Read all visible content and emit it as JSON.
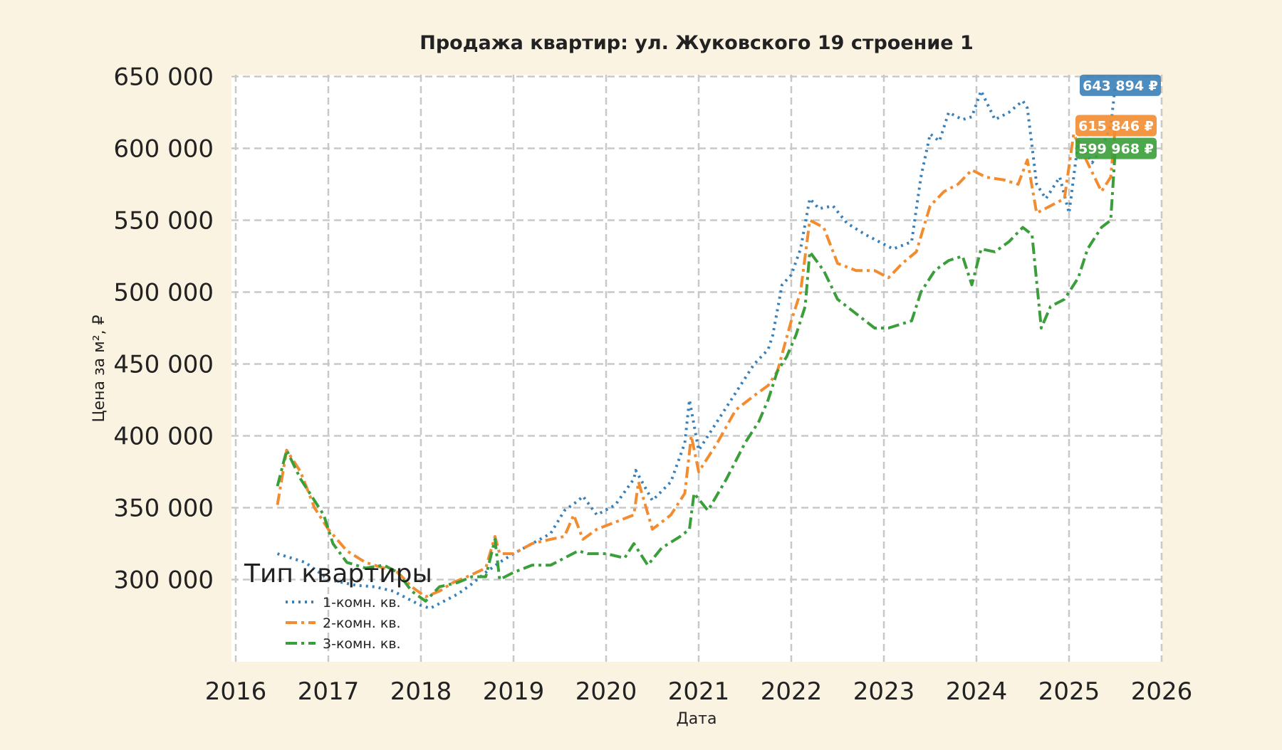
{
  "chart_data": {
    "type": "line",
    "title": "Продажа квартир: ул. Жуковского 19 строение 1",
    "xlabel": "Дата",
    "ylabel": "Цена за м², ₽",
    "xlim": [
      2016,
      2026
    ],
    "ylim": [
      262000,
      660000
    ],
    "x_ticks": [
      2016,
      2017,
      2018,
      2019,
      2020,
      2021,
      2022,
      2023,
      2024,
      2025,
      2026
    ],
    "x_tick_labels": [
      "2016",
      "2017",
      "2018",
      "2019",
      "2020",
      "2021",
      "2022",
      "2023",
      "2024",
      "2025",
      "2026"
    ],
    "y_ticks": [
      300000,
      350000,
      400000,
      450000,
      500000,
      550000,
      600000,
      650000
    ],
    "y_tick_labels": [
      "300 000",
      "350 000",
      "400 000",
      "450 000",
      "500 000",
      "550 000",
      "600 000",
      "650 000"
    ],
    "grid": true,
    "legend": {
      "title": "Тип квартиры",
      "placement": "lower-left"
    },
    "series": [
      {
        "name": "1-комн. кв.",
        "color": "#3a80b8",
        "style": "dotted",
        "x": [
          2016.45,
          2016.6,
          2016.75,
          2016.9,
          2017.0,
          2017.15,
          2017.3,
          2017.5,
          2017.7,
          2017.85,
          2018.0,
          2018.1,
          2018.25,
          2018.4,
          2018.55,
          2018.7,
          2018.85,
          2019.0,
          2019.2,
          2019.4,
          2019.55,
          2019.7,
          2019.75,
          2019.9,
          2020.1,
          2020.3,
          2020.32,
          2020.5,
          2020.7,
          2020.85,
          2020.9,
          2021.0,
          2021.2,
          2021.4,
          2021.6,
          2021.75,
          2021.8,
          2021.9,
          2022.0,
          2022.1,
          2022.2,
          2022.3,
          2022.45,
          2022.6,
          2022.8,
          2022.95,
          2023.1,
          2023.3,
          2023.4,
          2023.5,
          2023.6,
          2023.7,
          2023.85,
          2023.95,
          2024.05,
          2024.2,
          2024.35,
          2024.5,
          2024.55,
          2024.65,
          2024.75,
          2024.9,
          2025.0,
          2025.1,
          2025.25,
          2025.35,
          2025.45,
          2025.5
        ],
        "y": [
          318000,
          315000,
          312000,
          305000,
          300000,
          298000,
          296000,
          295000,
          292000,
          287000,
          282000,
          280000,
          285000,
          290000,
          297000,
          305000,
          312000,
          318000,
          325000,
          332000,
          348000,
          355000,
          358000,
          345000,
          352000,
          370000,
          376000,
          355000,
          368000,
          395000,
          425000,
          390000,
          410000,
          430000,
          450000,
          460000,
          470000,
          505000,
          512000,
          530000,
          565000,
          558000,
          560000,
          548000,
          540000,
          535000,
          530000,
          535000,
          580000,
          610000,
          605000,
          625000,
          620000,
          622000,
          640000,
          620000,
          625000,
          633000,
          628000,
          575000,
          565000,
          580000,
          555000,
          605000,
          590000,
          600000,
          615000,
          643894
        ]
      },
      {
        "name": "2-комн. кв.",
        "color": "#f28c30",
        "style": "dash-dot",
        "x": [
          2016.45,
          2016.55,
          2016.7,
          2016.85,
          2017.0,
          2017.2,
          2017.4,
          2017.6,
          2017.75,
          2017.9,
          2018.05,
          2018.2,
          2018.35,
          2018.5,
          2018.7,
          2018.8,
          2018.85,
          2019.0,
          2019.2,
          2019.4,
          2019.55,
          2019.65,
          2019.75,
          2019.9,
          2020.1,
          2020.3,
          2020.35,
          2020.5,
          2020.7,
          2020.85,
          2020.92,
          2021.0,
          2021.2,
          2021.4,
          2021.6,
          2021.75,
          2021.85,
          2022.0,
          2022.1,
          2022.2,
          2022.35,
          2022.5,
          2022.7,
          2022.9,
          2023.05,
          2023.2,
          2023.35,
          2023.5,
          2023.65,
          2023.8,
          2023.95,
          2024.1,
          2024.3,
          2024.45,
          2024.55,
          2024.65,
          2024.8,
          2024.95,
          2025.05,
          2025.2,
          2025.35,
          2025.45,
          2025.5
        ],
        "y": [
          352000,
          390000,
          375000,
          350000,
          335000,
          320000,
          312000,
          308000,
          305000,
          295000,
          288000,
          292000,
          298000,
          302000,
          308000,
          330000,
          318000,
          318000,
          325000,
          328000,
          330000,
          345000,
          328000,
          335000,
          340000,
          345000,
          368000,
          335000,
          345000,
          360000,
          400000,
          375000,
          395000,
          418000,
          428000,
          435000,
          445000,
          480000,
          500000,
          550000,
          545000,
          520000,
          515000,
          515000,
          510000,
          520000,
          528000,
          560000,
          570000,
          575000,
          585000,
          580000,
          578000,
          575000,
          592000,
          555000,
          560000,
          565000,
          610000,
          590000,
          570000,
          580000,
          615846
        ]
      },
      {
        "name": "3-комн. кв.",
        "color": "#3a9e3a",
        "style": "dash-dot",
        "x": [
          2016.45,
          2016.55,
          2016.7,
          2016.85,
          2016.95,
          2017.05,
          2017.2,
          2017.4,
          2017.6,
          2017.75,
          2017.9,
          2018.05,
          2018.2,
          2018.4,
          2018.55,
          2018.7,
          2018.8,
          2018.85,
          2019.0,
          2019.2,
          2019.4,
          2019.55,
          2019.7,
          2019.8,
          2020.0,
          2020.2,
          2020.3,
          2020.45,
          2020.6,
          2020.8,
          2020.9,
          2020.95,
          2021.1,
          2021.3,
          2021.5,
          2021.65,
          2021.75,
          2021.85,
          2021.95,
          2022.05,
          2022.15,
          2022.2,
          2022.35,
          2022.5,
          2022.7,
          2022.9,
          2023.05,
          2023.2,
          2023.3,
          2023.4,
          2023.55,
          2023.7,
          2023.85,
          2023.95,
          2024.05,
          2024.2,
          2024.35,
          2024.5,
          2024.6,
          2024.7,
          2024.8,
          2024.95,
          2025.1,
          2025.2,
          2025.35,
          2025.45,
          2025.5
        ],
        "y": [
          365000,
          390000,
          370000,
          355000,
          345000,
          325000,
          312000,
          308000,
          310000,
          305000,
          292000,
          285000,
          295000,
          298000,
          302000,
          302000,
          328000,
          300000,
          305000,
          310000,
          310000,
          315000,
          320000,
          318000,
          318000,
          315000,
          325000,
          310000,
          322000,
          330000,
          335000,
          360000,
          348000,
          370000,
          395000,
          410000,
          425000,
          445000,
          455000,
          470000,
          490000,
          528000,
          515000,
          495000,
          485000,
          475000,
          475000,
          478000,
          480000,
          500000,
          515000,
          522000,
          525000,
          505000,
          530000,
          528000,
          535000,
          545000,
          540000,
          475000,
          490000,
          495000,
          510000,
          530000,
          545000,
          550000,
          599968
        ]
      }
    ],
    "end_labels": [
      "643 894 ₽",
      "615 846 ₽",
      "599 968 ₽"
    ]
  }
}
